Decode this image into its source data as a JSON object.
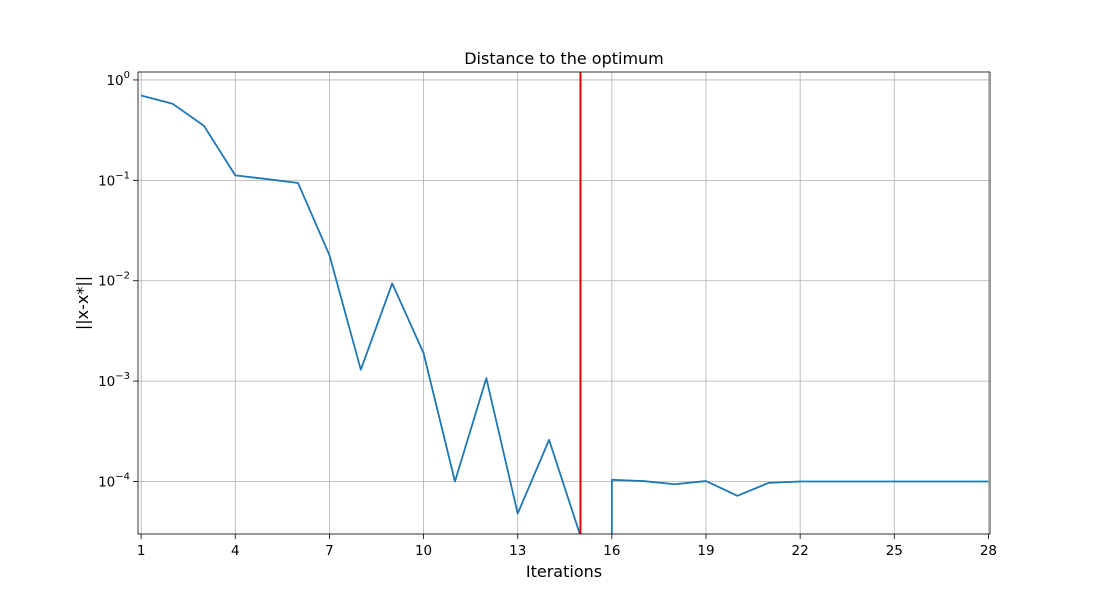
{
  "chart_data": {
    "type": "line",
    "title": "Distance to the optimum",
    "xlabel": "Iterations",
    "ylabel": "||x-x*||",
    "y_scale": "log",
    "xlim": [
      0.9,
      28.05
    ],
    "ylim": [
      3e-05,
      1.2
    ],
    "grid": true,
    "x_ticks": [
      1,
      4,
      7,
      10,
      13,
      16,
      19,
      22,
      25,
      28
    ],
    "x_tick_labels": [
      "1",
      "4",
      "7",
      "10",
      "13",
      "16",
      "19",
      "22",
      "25",
      "28"
    ],
    "y_ticks": [
      0.0001,
      0.001,
      0.01,
      0.1,
      1
    ],
    "y_tick_labels": [
      {
        "base": "10",
        "exp": "−4"
      },
      {
        "base": "10",
        "exp": "−3"
      },
      {
        "base": "10",
        "exp": "−2"
      },
      {
        "base": "10",
        "exp": "−1"
      },
      {
        "base": "10",
        "exp": "0"
      }
    ],
    "series": [
      {
        "color": "#1f77b4",
        "x": [
          1,
          2,
          3,
          4,
          5,
          6,
          7,
          8,
          9,
          10,
          11,
          12,
          13,
          14,
          15,
          16,
          17,
          18,
          19,
          20,
          21,
          22,
          23,
          24,
          25,
          26,
          27,
          28
        ],
        "y": [
          0.7,
          0.58,
          0.35,
          0.112,
          0.103,
          0.094,
          0.018,
          0.0013,
          0.0094,
          0.0019,
          0.0001,
          0.00107,
          4.8e-05,
          0.00026,
          0.0,
          0.0,
          0.000101,
          9.4e-05,
          0.000101,
          7.2e-05,
          9.7e-05,
          0.0001,
          0.0001,
          0.0001,
          0.0001,
          0.0001,
          0.0001,
          0.0001
        ],
        "y_corrected_16": 0.000104
      }
    ],
    "vline": {
      "x": 15,
      "color": "#e00000"
    }
  }
}
